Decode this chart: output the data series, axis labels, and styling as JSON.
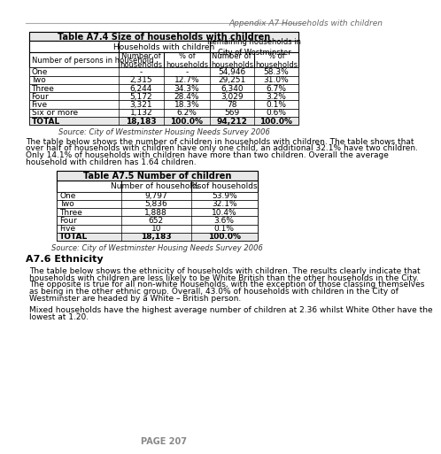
{
  "header_text": "Appendix A7 Households with children",
  "table1_title": "Table A7.4 Size of households with children",
  "table1_rows": [
    [
      "One",
      "-",
      "-",
      "54,946",
      "58.3%"
    ],
    [
      "Two",
      "2,315",
      "12.7%",
      "29,251",
      "31.0%"
    ],
    [
      "Three",
      "6,244",
      "34.3%",
      "6,340",
      "6.7%"
    ],
    [
      "Four",
      "5,172",
      "28.4%",
      "3,029",
      "3.2%"
    ],
    [
      "Five",
      "3,321",
      "18.3%",
      "78",
      "0.1%"
    ],
    [
      "Six or more",
      "1,132",
      "6.2%",
      "569",
      "0.6%"
    ],
    [
      "TOTAL",
      "18,183",
      "100.0%",
      "94,212",
      "100.0%"
    ]
  ],
  "table1_source": "Source: City of Westminster Housing Needs Survey 2006",
  "para1_lines": [
    "The table below shows the number of children in households with children. The table shows that",
    "over half of households with children have only one child, an additional 32.1% have two children.",
    "Only 14.1% of households with children have more than two children. Overall the average",
    "household with children has 1.64 children."
  ],
  "table2_title": "Table A7.5 Number of children",
  "table2_rows": [
    [
      "One",
      "9,797",
      "53.9%"
    ],
    [
      "Two",
      "5,836",
      "32.1%"
    ],
    [
      "Three",
      "1,888",
      "10.4%"
    ],
    [
      "Four",
      "652",
      "3.6%"
    ],
    [
      "Five",
      "10",
      "0.1%"
    ],
    [
      "TOTAL",
      "18,183",
      "100.0%"
    ]
  ],
  "table2_source": "Source: City of Westminster Housing Needs Survey 2006",
  "section_heading": "A7.6 Ethnicity",
  "para2_lines": [
    "The table below shows the ethnicity of households with children. The results clearly indicate that",
    "households with children are less likely to be White British than the other households in the City.",
    "The opposite is true for all non-white households, with the exception of those classing themselves",
    "as being in the other ethnic group. Overall, 43.0% of households with children in the City of",
    "Westminster are headed by a White – British person."
  ],
  "para3_lines": [
    "Mixed households have the highest average number of children at 2.36 whilst White Other have the",
    "lowest at 1.20."
  ],
  "page_number": "PAGE 207",
  "bg_color": "#ffffff",
  "table_header_bg": "#e8e8e8",
  "table_border_color": "#000000",
  "text_color": "#000000",
  "header_italic_color": "#666666"
}
